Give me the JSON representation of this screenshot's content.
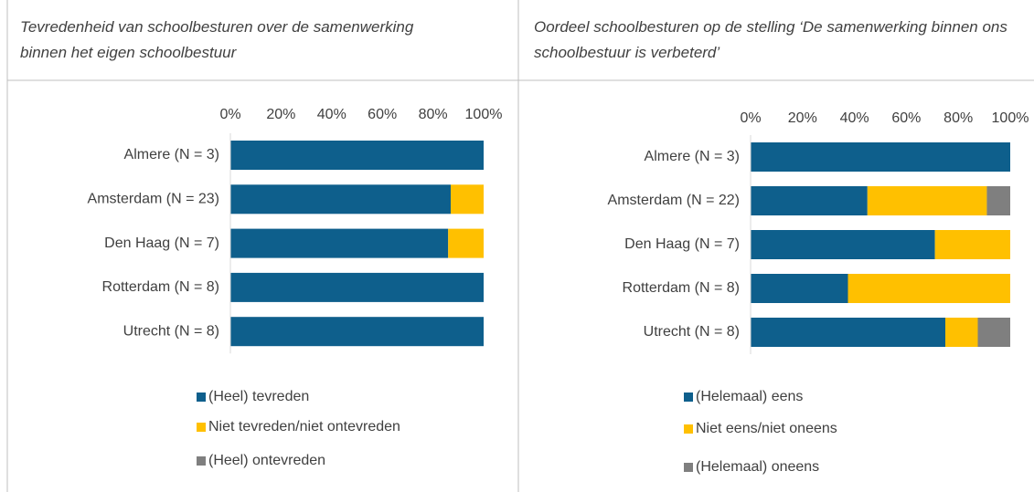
{
  "chart_data": [
    {
      "type": "bar",
      "orientation": "horizontal",
      "stacked": true,
      "title": "Tevredenheid van schoolbesturen over de samenwerking binnen het eigen schoolbestuur",
      "categories": [
        "Almere (N = 3)",
        "Amsterdam (N = 23)",
        "Den Haag (N = 7)",
        "Rotterdam (N = 8)",
        "Utrecht (N = 8)"
      ],
      "series": [
        {
          "name": "(Heel) tevreden",
          "color": "#0e5f8c",
          "values": [
            100,
            87,
            86,
            100,
            100
          ]
        },
        {
          "name": "Niet tevreden/niet ontevreden",
          "color": "#ffc000",
          "values": [
            0,
            13,
            14,
            0,
            0
          ]
        },
        {
          "name": "(Heel) ontevreden",
          "color": "#7f7f7f",
          "values": [
            0,
            0,
            0,
            0,
            0
          ]
        }
      ],
      "xlim": [
        0,
        100
      ],
      "xticks": [
        {
          "value": 0,
          "label": "0%"
        },
        {
          "value": 20,
          "label": "20%"
        },
        {
          "value": 40,
          "label": "40%"
        },
        {
          "value": 60,
          "label": "60%"
        },
        {
          "value": 80,
          "label": "80%"
        },
        {
          "value": 100,
          "label": "100%"
        }
      ],
      "legend": "bottom"
    },
    {
      "type": "bar",
      "orientation": "horizontal",
      "stacked": true,
      "title": "Oordeel schoolbesturen op de stelling ‘De samenwerking binnen ons schoolbestuur is verbeterd’",
      "categories": [
        "Almere (N = 3)",
        "Amsterdam (N = 22)",
        "Den Haag (N = 7)",
        "Rotterdam (N = 8)",
        "Utrecht (N = 8)"
      ],
      "series": [
        {
          "name": "(Helemaal) eens",
          "color": "#0e5f8c",
          "values": [
            100,
            45,
            71,
            37.5,
            75
          ]
        },
        {
          "name": "Niet eens/niet oneens",
          "color": "#ffc000",
          "values": [
            0,
            46,
            29,
            62.5,
            12.5
          ]
        },
        {
          "name": "(Helemaal) oneens",
          "color": "#7f7f7f",
          "values": [
            0,
            9,
            0,
            0,
            12.5
          ]
        }
      ],
      "xlim": [
        0,
        100
      ],
      "xticks": [
        {
          "value": 0,
          "label": "0%"
        },
        {
          "value": 20,
          "label": "20%"
        },
        {
          "value": 40,
          "label": "40%"
        },
        {
          "value": 60,
          "label": "60%"
        },
        {
          "value": 80,
          "label": "80%"
        },
        {
          "value": 100,
          "label": "100%"
        }
      ],
      "legend": "bottom"
    }
  ]
}
